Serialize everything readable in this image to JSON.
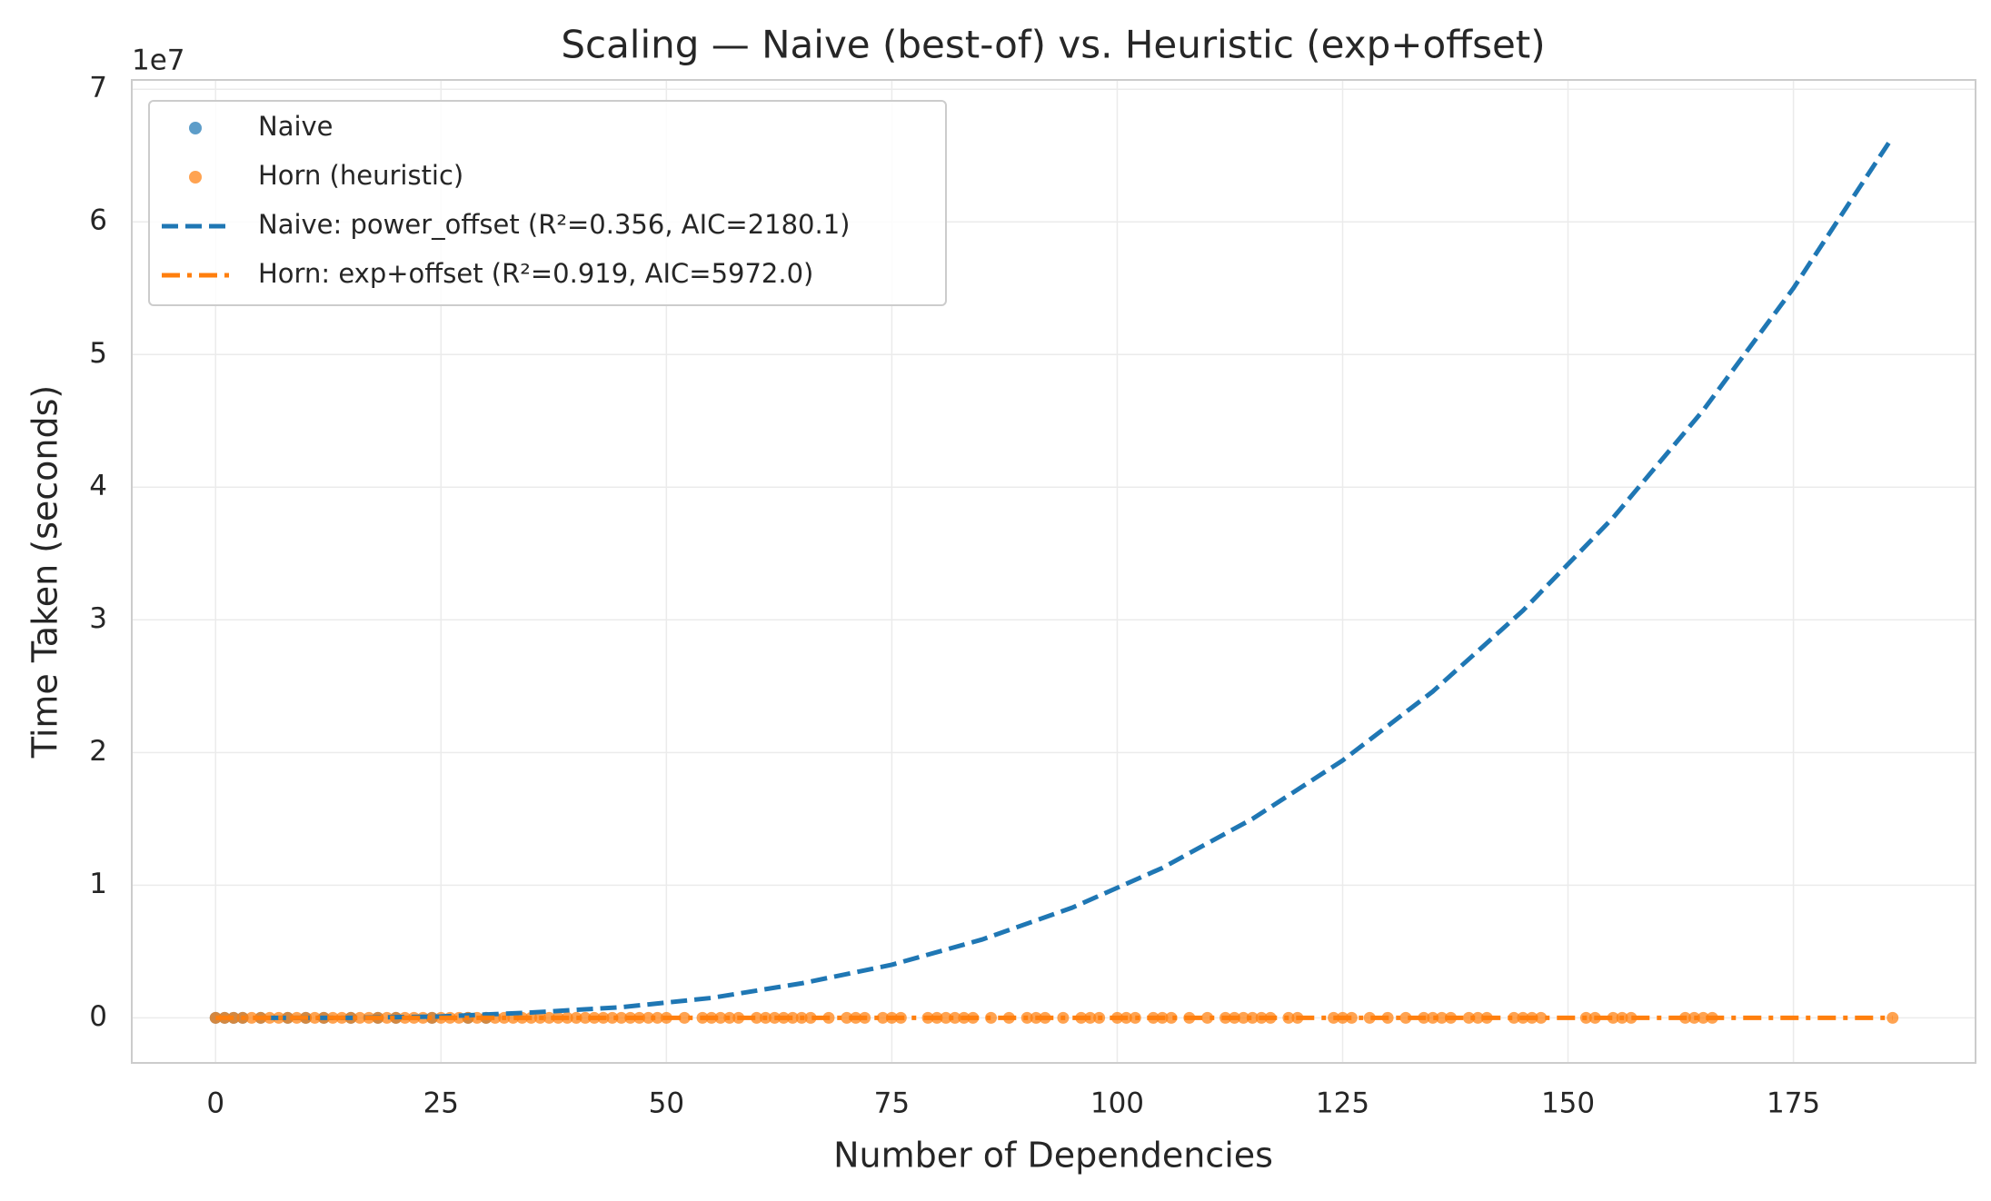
{
  "chart_data": {
    "type": "scatter",
    "title": "Scaling — Naive (best-of) vs. Heuristic (exp+offset)",
    "x_label": "Number of Dependencies",
    "y_label": "Time Taken (seconds)",
    "y_offset_text": "1e7",
    "xlim": [
      -9.3,
      195.2
    ],
    "ylim": [
      -0.34,
      7.07
    ],
    "xticks": [
      0,
      25,
      50,
      75,
      100,
      125,
      150,
      175
    ],
    "yticks": [
      0,
      1,
      2,
      3,
      4,
      5,
      6,
      7
    ],
    "grid": true,
    "legend": "upper left",
    "series": [
      {
        "name": "Naive",
        "kind": "scatter",
        "color": "#1f77b4",
        "x": [
          0,
          1,
          2,
          3,
          5,
          8,
          10,
          12,
          15,
          18,
          20,
          24,
          28,
          30
        ],
        "values": [
          0,
          0,
          0,
          0,
          0,
          0,
          0,
          0,
          0,
          0,
          0,
          0,
          0,
          0
        ]
      },
      {
        "name": "Horn (heuristic)",
        "kind": "scatter",
        "color": "#ff7f0e",
        "x": [
          0,
          1,
          2,
          3,
          4,
          5,
          6,
          7,
          8,
          9,
          10,
          11,
          12,
          13,
          14,
          15,
          16,
          17,
          18,
          19,
          20,
          21,
          22,
          23,
          24,
          25,
          26,
          27,
          28,
          29,
          30,
          31,
          32,
          33,
          34,
          35,
          36,
          37,
          38,
          39,
          40,
          41,
          42,
          43,
          44,
          45,
          46,
          47,
          48,
          49,
          50,
          52,
          54,
          55,
          56,
          57,
          58,
          60,
          61,
          62,
          63,
          64,
          65,
          66,
          68,
          70,
          71,
          72,
          74,
          75,
          76,
          79,
          80,
          81,
          82,
          83,
          84,
          86,
          88,
          90,
          91,
          92,
          94,
          96,
          97,
          98,
          100,
          101,
          102,
          104,
          105,
          106,
          108,
          110,
          112,
          113,
          114,
          115,
          116,
          117,
          119,
          120,
          124,
          125,
          126,
          128,
          130,
          132,
          134,
          135,
          136,
          137,
          139,
          140,
          141,
          144,
          145,
          146,
          147,
          152,
          153,
          155,
          156,
          157,
          163,
          164,
          165,
          166,
          186
        ],
        "values": [
          0,
          0,
          0,
          0,
          0,
          0,
          0,
          0,
          0,
          0,
          0,
          0,
          0,
          0,
          0,
          0,
          0,
          0,
          0,
          0,
          0,
          0,
          0,
          0,
          0,
          0,
          0,
          0,
          0,
          0,
          0,
          0,
          0,
          0,
          0,
          0,
          0,
          0,
          0,
          0,
          0,
          0,
          0,
          0,
          0,
          0,
          0,
          0,
          0,
          0,
          0,
          0,
          0,
          0,
          0,
          0,
          0,
          0,
          0,
          0,
          0,
          0,
          0,
          0,
          0,
          0,
          0,
          0,
          0,
          0,
          0,
          0,
          0,
          0,
          0,
          0,
          0,
          0,
          0,
          0,
          0,
          0,
          0,
          0,
          0,
          0,
          0,
          0,
          0,
          0,
          0,
          0,
          0,
          0,
          0,
          0,
          0,
          0,
          0,
          0,
          0,
          0,
          0,
          0,
          0,
          0,
          0,
          0,
          0,
          0,
          0,
          0,
          0,
          0,
          0,
          0,
          0,
          0,
          0,
          0,
          0,
          0,
          0,
          0,
          0,
          0,
          0,
          0,
          0
        ]
      },
      {
        "name": "Naive: power_offset (R²=0.356, AIC=2180.1)",
        "kind": "line",
        "linestyle": "dashed",
        "color": "#1f77b4",
        "x": [
          6,
          15,
          25,
          35,
          45,
          55,
          65,
          75,
          85,
          95,
          105,
          115,
          125,
          135,
          145,
          155,
          165,
          175,
          186
        ],
        "values": [
          0,
          0,
          0.01,
          0.04,
          0.08,
          0.15,
          0.26,
          0.4,
          0.59,
          0.83,
          1.13,
          1.5,
          1.94,
          2.46,
          3.07,
          3.77,
          4.58,
          5.5,
          6.64
        ]
      },
      {
        "name": "Horn: exp+offset (R²=0.919, AIC=5972.0)",
        "kind": "line",
        "linestyle": "dashdot",
        "color": "#ff7f0e",
        "x": [
          0,
          186
        ],
        "values": [
          0,
          0
        ]
      }
    ]
  }
}
